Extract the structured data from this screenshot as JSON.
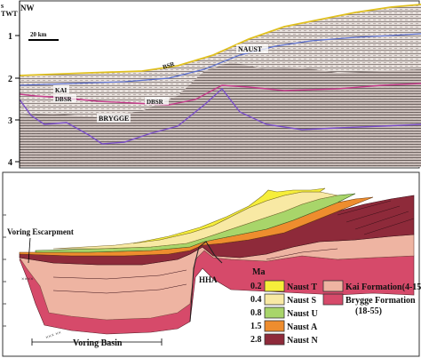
{
  "seismic": {
    "corner_label": "NW",
    "axis_unit_top": "s",
    "axis_unit": "TWT",
    "ticks": [
      "1",
      "2",
      "3",
      "4"
    ],
    "scale_bar": "20 km",
    "horizon_labels": {
      "naust": "NAUST",
      "bsr": "BSR",
      "kai": "KAI",
      "dbsr_left": "DBSR",
      "dbsr_right": "DBSR",
      "brygge": "BRYGGE"
    }
  },
  "section": {
    "escarpment_label": "Voring Escarpment",
    "high_label": "HHA",
    "basin_label": "Voring Basin",
    "legend": {
      "age_title": "Ma",
      "ages": [
        "0.2",
        "0.4",
        "0.8",
        "1.5",
        "2.8"
      ],
      "units": [
        {
          "label": "Naust T",
          "color": "#f6ee3a"
        },
        {
          "label": "Naust S",
          "color": "#f8e9a4"
        },
        {
          "label": "Naust U",
          "color": "#a8d56a"
        },
        {
          "label": "Naust A",
          "color": "#ee8d2e"
        },
        {
          "label": "Naust N",
          "color": "#8e2a3a"
        }
      ],
      "formations": [
        {
          "label": "Kai Formation",
          "suffix": "(4-15)",
          "color": "#eeb4a2"
        },
        {
          "label": "Brygge Formation",
          "suffix": "(18-55)",
          "color": "#d64a6a"
        }
      ]
    }
  }
}
